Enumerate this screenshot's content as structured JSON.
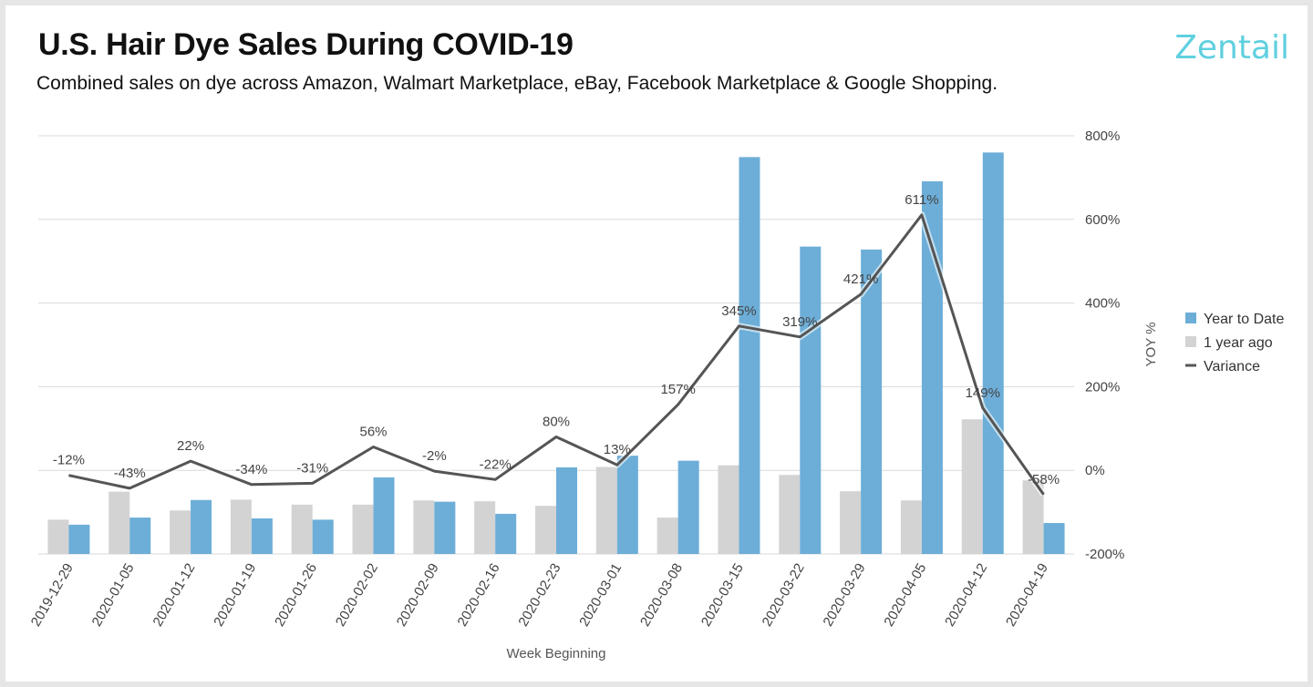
{
  "header": {
    "title": "U.S. Hair Dye Sales During COVID-19",
    "subtitle": "Combined sales on dye across Amazon, Walmart Marketplace, eBay, Facebook Marketplace & Google Shopping.",
    "brand": "Zentail"
  },
  "colors": {
    "ytd": "#6daed8",
    "last_year": "#d3d3d3",
    "variance": "#555555",
    "grid": "#d9d9d9",
    "brand": "#5fd0df"
  },
  "chart_data": {
    "type": "bar",
    "title": "U.S. Hair Dye Sales During COVID-19",
    "xlabel": "Week Beginning",
    "ylabel": "",
    "y2label": "YOY %",
    "y2lim": [
      -200,
      800
    ],
    "y2ticks": [
      "800%",
      "600%",
      "400%",
      "200%",
      "0%",
      "-200%"
    ],
    "y2tick_values": [
      800,
      600,
      400,
      200,
      0,
      -200
    ],
    "grid": true,
    "legend_position": "right",
    "categories": [
      "2019-12-29",
      "2020-01-05",
      "2020-01-12",
      "2020-01-19",
      "2020-01-26",
      "2020-02-02",
      "2020-02-09",
      "2020-02-16",
      "2020-02-23",
      "2020-03-01",
      "2020-03-08",
      "2020-03-15",
      "2020-03-22",
      "2020-03-29",
      "2020-04-05",
      "2020-04-12",
      "2020-04-19"
    ],
    "series": [
      {
        "name": "Year to Date",
        "kind": "bar",
        "axis": "left",
        "values": [
          7,
          8.7,
          12.9,
          8.5,
          8.2,
          18.3,
          12.5,
          9.6,
          20.7,
          23.5,
          22.3,
          94.9,
          73.5,
          72.8,
          89.1,
          96.0,
          7.4
        ]
      },
      {
        "name": "1 year ago",
        "kind": "bar",
        "axis": "left",
        "values": [
          8.2,
          14.9,
          10.4,
          13.0,
          11.8,
          11.8,
          12.8,
          12.6,
          11.5,
          20.8,
          8.7,
          21.2,
          18.9,
          15.0,
          12.8,
          32.2,
          17.6
        ]
      },
      {
        "name": "Variance",
        "kind": "line",
        "axis": "right",
        "values": [
          -12,
          -43,
          22,
          -34,
          -31,
          56,
          -2,
          -22,
          80,
          13,
          157,
          345,
          319,
          421,
          611,
          149,
          -58
        ],
        "labels": [
          "-12%",
          "-43%",
          "22%",
          "-34%",
          "-31%",
          "56%",
          "-2%",
          "-22%",
          "80%",
          "13%",
          "157%",
          "345%",
          "319%",
          "421%",
          "611%",
          "149%",
          "-58%"
        ]
      }
    ]
  }
}
